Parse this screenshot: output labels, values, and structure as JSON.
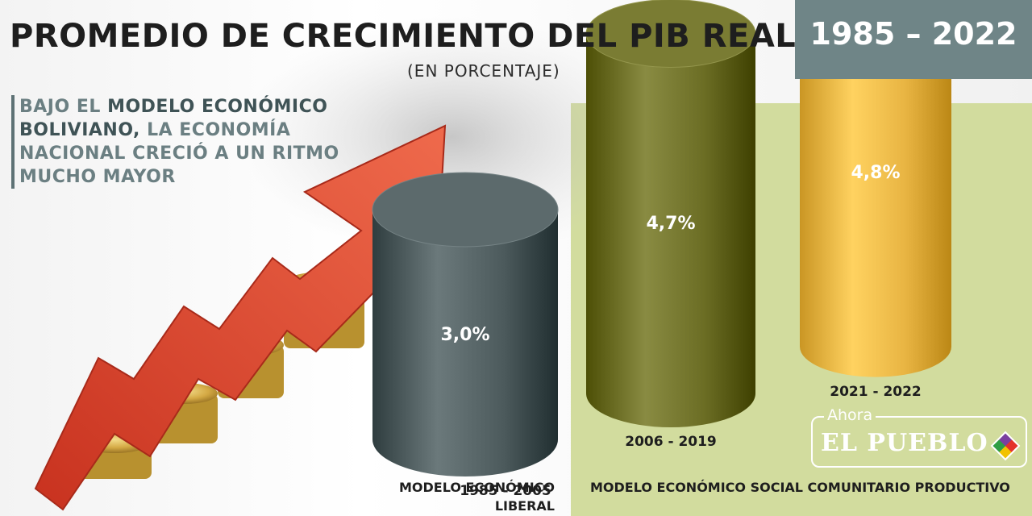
{
  "header": {
    "title": "PROMEDIO DE CRECIMIENTO DEL PIB REAL",
    "year_range": "1985 – 2022",
    "subtitle": "(EN PORCENTAJE)"
  },
  "intro": {
    "line_prefix": "BAJO EL ",
    "highlight": "MODELO ECONÓMICO BOLIVIANO,",
    "rest": "LA ECONOMÍA NACIONAL CRECIÓ A UN RITMO MUCHO MAYOR"
  },
  "models": {
    "left": "MODELO ECONÓMICO LIBERAL",
    "right": "MODELO ECONÓMICO SOCIAL COMUNITARIO PRODUCTIVO"
  },
  "logo": {
    "top": "Ahora",
    "main": "EL PUEBLO"
  },
  "colors": {
    "bar_liberal": "#4d5b5d",
    "bar_2006": "#6b6d24",
    "bar_2021": "#e8b442",
    "green_panel": "#d2dc9e",
    "arrow": "#d9432f",
    "year_box": "#6f8587"
  },
  "chart_data": {
    "type": "bar",
    "title": "PROMEDIO DE CRECIMIENTO DEL PIB REAL",
    "ylabel": "(EN PORCENTAJE)",
    "categories": [
      "1985 - 2005",
      "2006 - 2019",
      "2021 - 2022"
    ],
    "values": [
      3.0,
      4.7,
      4.8
    ],
    "value_labels": [
      "3,0%",
      "4,7%",
      "4,8%"
    ]
  }
}
